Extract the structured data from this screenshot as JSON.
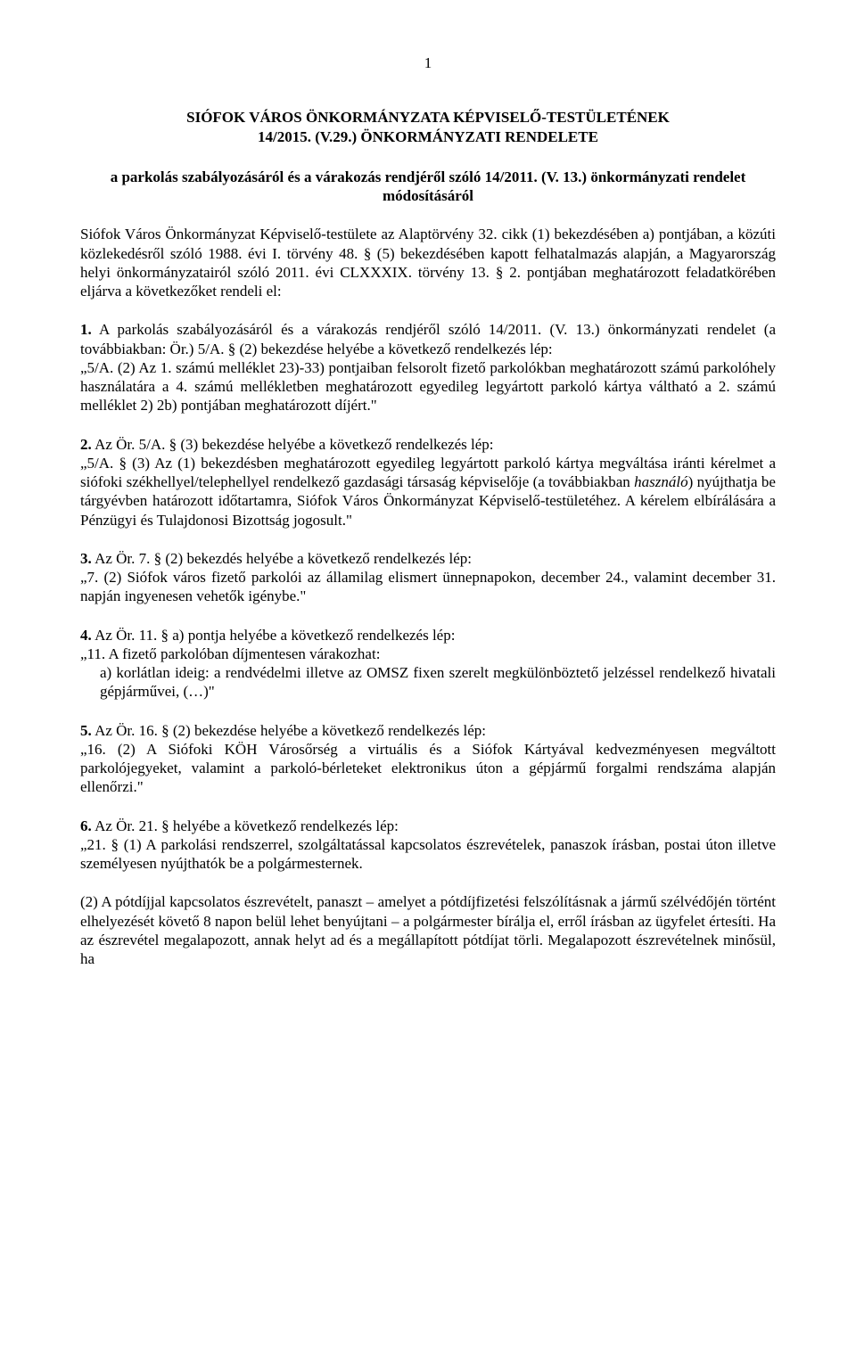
{
  "page_number": "1",
  "title": {
    "line1": "SIÓFOK VÁROS ÖNKORMÁNYZATA KÉPVISELŐ-TESTÜLETÉNEK",
    "line2": "14/2015. (V.29.) ÖNKORMÁNYZATI RENDELETE"
  },
  "subtitle": "a parkolás szabályozásáról és a várakozás rendjéről szóló 14/2011. (V. 13.) önkormányzati rendelet módosításáról",
  "preamble": "Siófok Város Önkormányzat Képviselő-testülete az Alaptörvény 32. cikk (1) bekezdésében a) pontjában, a közúti közlekedésről szóló 1988. évi I. törvény 48. § (5) bekezdésében kapott felhatalmazás alapján, a Magyarország helyi önkormányzatairól szóló 2011. évi CLXXXIX. törvény 13. § 2. pontjában meghatározott feladatkörében eljárva a következőket rendeli el:",
  "sections": {
    "s1": {
      "lead": "1.",
      "body": "A parkolás szabályozásáról és a várakozás rendjéről szóló 14/2011. (V. 13.) önkormányzati rendelet (a továbbiakban: Ör.) 5/A. § (2) bekezdése helyébe a következő rendelkezés lép:",
      "quote": "„5/A. (2) Az 1. számú melléklet 23)-33) pontjaiban felsorolt fizető parkolókban meghatározott számú parkolóhely használatára a 4. számú mellékletben meghatározott egyedileg legyártott parkoló kártya váltható a 2. számú melléklet 2) 2b) pontjában meghatározott díjért.\""
    },
    "s2": {
      "lead": "2.",
      "body": "Az Ör. 5/A. § (3) bekezdése helyébe a következő rendelkezés lép:",
      "quote": "„5/A. § (3) Az (1) bekezdésben meghatározott egyedileg legyártott parkoló kártya megváltása iránti kérelmet a siófoki székhellyel/telephellyel rendelkező gazdasági társaság képviselője (a továbbiakban ",
      "italic": "használó",
      "quote2": ") nyújthatja be tárgyévben határozott időtartamra, Siófok Város Önkormányzat Képviselő-testületéhez. A kérelem elbírálására a Pénzügyi és Tulajdonosi Bizottság jogosult.\""
    },
    "s3": {
      "lead": "3.",
      "body": "Az Ör. 7. § (2) bekezdés helyébe a következő rendelkezés lép:",
      "quote": "„7. (2) Siófok város fizető parkolói az államilag elismert ünnepnapokon, december 24., valamint december 31. napján ingyenesen vehetők igénybe.\""
    },
    "s4": {
      "lead": "4.",
      "body": "Az Ör. 11. § a) pontja helyébe a következő rendelkezés lép:",
      "quote": "„11. A fizető parkolóban díjmentesen várakozhat:",
      "sub": "a) korlátlan ideig: a rendvédelmi illetve az OMSZ fixen szerelt megkülönböztető jelzéssel rendelkező hivatali gépjárművei, (…)\""
    },
    "s5": {
      "lead": "5.",
      "body": "Az Ör. 16. § (2) bekezdése helyébe a következő rendelkezés lép:",
      "quote": "„16. (2) A Siófoki KÖH Városőrség a virtuális és a Siófok Kártyával kedvezményesen megváltott parkolójegyeket, valamint a parkoló-bérleteket elektronikus úton a gépjármű forgalmi rendszáma alapján ellenőrzi.\""
    },
    "s6": {
      "lead": "6.",
      "body": "Az Ör. 21. § helyébe a következő rendelkezés lép:",
      "quote": "„21. § (1) A parkolási rendszerrel, szolgáltatással kapcsolatos észrevételek, panaszok írásban, postai úton illetve személyesen nyújthatók be a polgármesternek."
    }
  },
  "s6_p2": "(2) A pótdíjjal kapcsolatos észrevételt, panaszt – amelyet a pótdíjfizetési felszólításnak a jármű szélvédőjén történt elhelyezését követő 8 napon belül lehet benyújtani – a polgármester bírálja el, erről írásban az ügyfelet értesíti. Ha az észrevétel megalapozott, annak helyt ad és a megállapított pótdíjat törli. Megalapozott észrevételnek minősül, ha"
}
